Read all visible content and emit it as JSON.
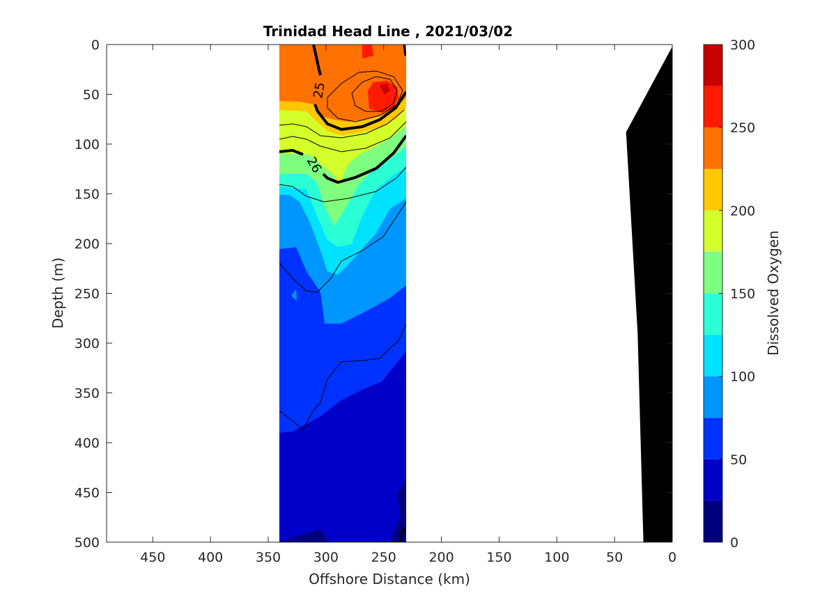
{
  "chart_data": {
    "type": "heatmap",
    "subtype": "filled-contour",
    "title": "Trinidad Head Line , 2021/03/02",
    "xlabel": "Offshore Distance (km)",
    "ylabel": "Depth (m)",
    "xlim": [
      490,
      0
    ],
    "ylim": [
      500,
      0
    ],
    "x_reversed": true,
    "y_reversed": true,
    "xticks": [
      450,
      400,
      350,
      300,
      250,
      200,
      150,
      100,
      50,
      0
    ],
    "yticks": [
      0,
      50,
      100,
      150,
      200,
      250,
      300,
      350,
      400,
      450,
      500
    ],
    "data_extent_x": [
      340,
      230
    ],
    "colorbar": {
      "label": "Dissolved Oxygen",
      "range": [
        0,
        300
      ],
      "ticks": [
        0,
        50,
        100,
        150,
        200,
        250,
        300
      ],
      "levels": [
        0,
        25,
        50,
        75,
        100,
        125,
        150,
        175,
        200,
        225,
        250,
        275,
        300
      ],
      "colors": [
        "#00007f",
        "#0000c8",
        "#0032ff",
        "#0096ff",
        "#00e2ff",
        "#2affd5",
        "#7fff7f",
        "#d5ff2a",
        "#ffc800",
        "#ff7100",
        "#ff1a00",
        "#c80000"
      ]
    },
    "contour_labels": [
      "25",
      "26"
    ],
    "bathymetry": [
      [
        25,
        500
      ],
      [
        30,
        290
      ],
      [
        40,
        88
      ],
      [
        0,
        2
      ]
    ],
    "grid": false
  },
  "colors": {
    "bathymetry_fill": "#000000",
    "contour_line": "#000000",
    "axis": "#262626"
  }
}
